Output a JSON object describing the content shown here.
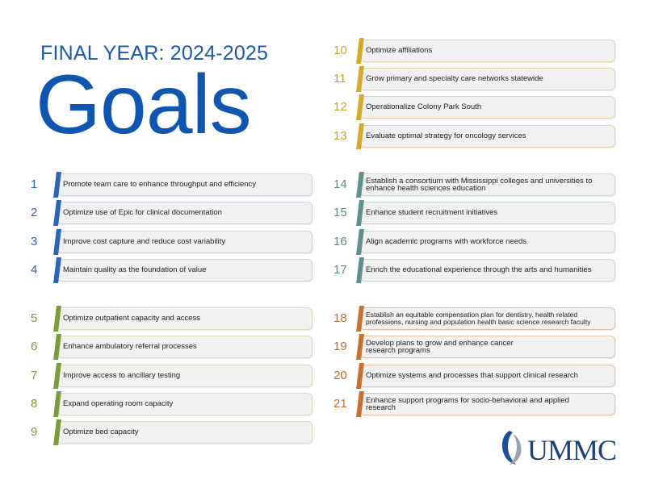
{
  "header": {
    "subtitle": "FINAL YEAR: 2024-2025",
    "title": "Goals"
  },
  "goals": [
    {
      "number": "1",
      "text": "Promote team care to enhance throughput and efficiency",
      "color": "#2e63b8"
    },
    {
      "number": "2",
      "text": "Optimize use of Epic for clinical documentation",
      "color": "#2e63b8"
    },
    {
      "number": "3",
      "text": "Improve cost capture and reduce cost variability",
      "color": "#2e63b8"
    },
    {
      "number": "4",
      "text": "Maintain quality as the foundation of value",
      "color": "#2e63b8"
    },
    {
      "number": "5",
      "text": "Optimize outpatient capacity and access",
      "color": "#7e9a3a"
    },
    {
      "number": "6",
      "text": "Enhance ambulatory referral processes",
      "color": "#7e9a3a"
    },
    {
      "number": "7",
      "text": "Improve access to ancillary testing",
      "color": "#7e9a3a"
    },
    {
      "number": "8",
      "text": "Expand operating room capacity",
      "color": "#7e9a3a"
    },
    {
      "number": "9",
      "text": "Optimize bed capacity",
      "color": "#7e9a3a"
    },
    {
      "number": "10",
      "text": "Optimize affiliations",
      "color": "#d6ab2b"
    },
    {
      "number": "11",
      "text": "Grow primary and specialty care networks statewide",
      "color": "#d6ab2b"
    },
    {
      "number": "12",
      "text": "Operationalize Colony Park South",
      "color": "#d6ab2b"
    },
    {
      "number": "13",
      "text": "Evaluate optimal strategy for oncology services",
      "color": "#d6ab2b"
    },
    {
      "number": "14",
      "text": "Establish a consortium with Mississippi colleges and universities to enhance health sciences education",
      "color": "#5e918b"
    },
    {
      "number": "15",
      "text": "Enhance student recruitment initiatives",
      "color": "#5e918b"
    },
    {
      "number": "16",
      "text": "Align academic programs with workforce needs",
      "color": "#5e918b"
    },
    {
      "number": "17",
      "text": "Enrich the educational experience through the arts and humanities",
      "color": "#5e918b"
    },
    {
      "number": "18",
      "text": "Establish an equitable compensation plan for dentistry, health related professions, nursing and population health basic science research faculty",
      "color": "#c8712e"
    },
    {
      "number": "19",
      "text": "Develop plans to grow and enhance cancer research programs",
      "color": "#c8712e"
    },
    {
      "number": "20",
      "text": "Optimize systems and processes that support clinical research",
      "color": "#c8712e"
    },
    {
      "number": "21",
      "text": "Enhance support programs for socio-behavioral and applied research",
      "color": "#c8712e"
    }
  ],
  "logo": {
    "text": "UMMC"
  }
}
